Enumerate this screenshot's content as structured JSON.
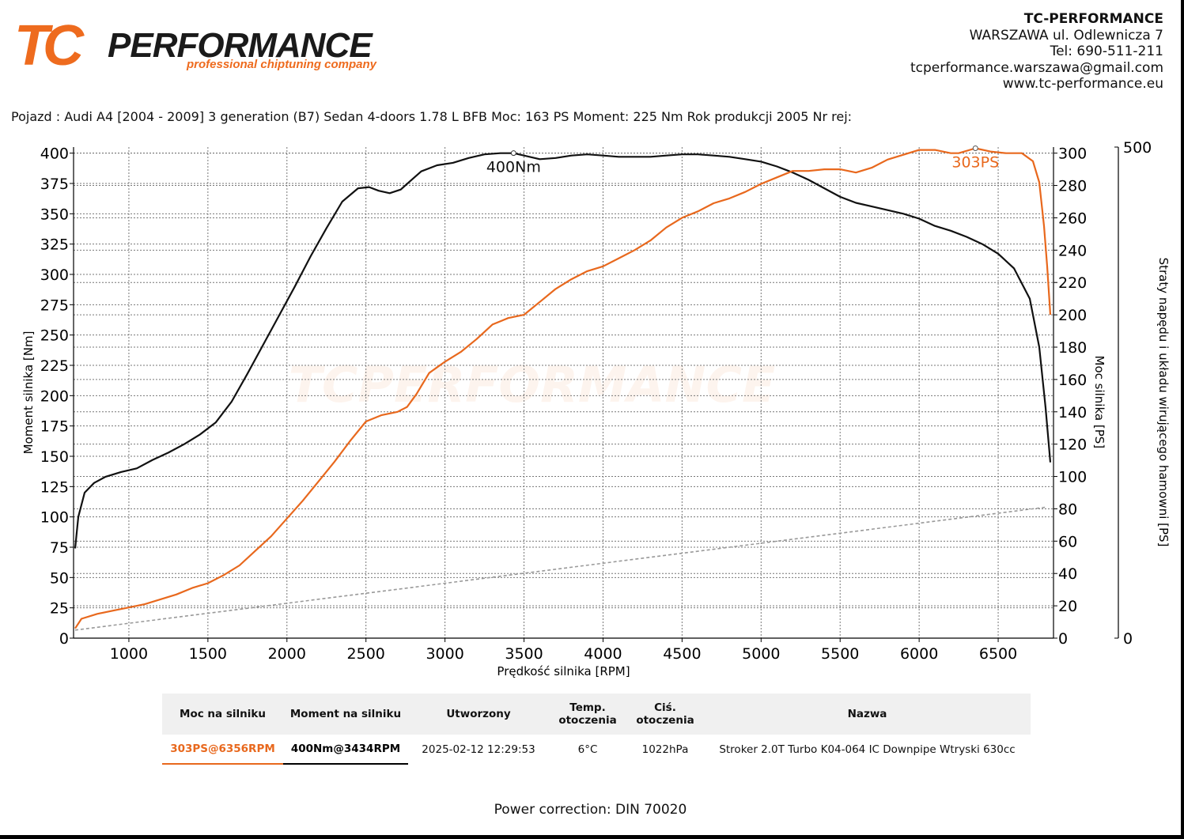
{
  "header": {
    "logo_text": "TCPERFORMANCE",
    "logo_tagline": "professional chiptuning company",
    "company_name": "TC-PERFORMANCE",
    "address": "WARSZAWA ul. Odlewnicza 7",
    "phone": "Tel: 690-511-211",
    "email": "tcperformance.warszawa@gmail.com",
    "website": "www.tc-performance.eu"
  },
  "vehicle_line": "Pojazd : Audi A4 [2004 - 2009] 3 generation (B7) Sedan 4-doors 1.78 L BFB Moc: 163 PS Moment: 225 Nm Rok produkcji 2005 Nr rej:",
  "colors": {
    "power": "#e8681d",
    "torque": "#111111",
    "losses": "#999999"
  },
  "chart_data": {
    "type": "line",
    "xlabel": "Prędkość silnika [RPM]",
    "ylabel_left": "Moment silnika [Nm]",
    "ylabel_right": "Moc silnika [PS]",
    "ylabel_right2": "Straty napędu i układu wirującego hamowni [PS]",
    "xlim": [
      650,
      6850
    ],
    "ylim_left": [
      0,
      405
    ],
    "ylim_right": [
      0,
      303.75
    ],
    "ylim_right2": [
      0,
      500
    ],
    "x_ticks": [
      1000,
      1500,
      2000,
      2500,
      3000,
      3500,
      4000,
      4500,
      5000,
      5500,
      6000,
      6500
    ],
    "y_ticks_left": [
      0,
      25,
      50,
      75,
      100,
      125,
      150,
      175,
      200,
      225,
      250,
      275,
      300,
      325,
      350,
      375,
      400
    ],
    "y_ticks_right": [
      0,
      20,
      40,
      60,
      80,
      100,
      120,
      140,
      160,
      180,
      200,
      220,
      240,
      260,
      280,
      300
    ],
    "y_ticks_right2": [
      0,
      500
    ],
    "grid": true,
    "series": [
      {
        "name": "Moment na silniku",
        "axis": "left",
        "x": [
          660,
          680,
          720,
          780,
          850,
          950,
          1050,
          1150,
          1250,
          1350,
          1450,
          1550,
          1650,
          1750,
          1850,
          1950,
          2050,
          2150,
          2250,
          2350,
          2450,
          2520,
          2580,
          2650,
          2720,
          2780,
          2850,
          2950,
          3050,
          3150,
          3250,
          3350,
          3434,
          3500,
          3600,
          3700,
          3800,
          3900,
          4000,
          4100,
          4200,
          4300,
          4400,
          4500,
          4600,
          4700,
          4800,
          4900,
          5000,
          5100,
          5200,
          5300,
          5400,
          5500,
          5600,
          5700,
          5800,
          5900,
          6000,
          6100,
          6200,
          6300,
          6400,
          6500,
          6600,
          6700,
          6760,
          6800,
          6830
        ],
        "values": [
          74,
          100,
          120,
          128,
          133,
          137,
          140,
          147,
          153,
          160,
          168,
          178,
          195,
          218,
          242,
          266,
          290,
          315,
          338,
          360,
          371,
          372,
          369,
          367,
          370,
          377,
          385,
          390,
          392,
          396,
          399,
          400,
          400,
          398,
          395,
          396,
          398,
          399,
          398,
          397,
          397,
          397,
          398,
          399,
          399,
          398,
          397,
          395,
          393,
          389,
          384,
          378,
          371,
          364,
          359,
          356,
          353,
          350,
          346,
          340,
          336,
          331,
          325,
          317,
          305,
          280,
          240,
          190,
          145
        ]
      },
      {
        "name": "Moc na silniku",
        "axis": "right",
        "x": [
          660,
          700,
          800,
          900,
          1000,
          1100,
          1200,
          1300,
          1400,
          1500,
          1600,
          1700,
          1800,
          1900,
          2000,
          2100,
          2200,
          2300,
          2400,
          2500,
          2600,
          2700,
          2760,
          2820,
          2900,
          3000,
          3100,
          3200,
          3300,
          3400,
          3500,
          3600,
          3700,
          3800,
          3900,
          4000,
          4100,
          4200,
          4300,
          4400,
          4500,
          4600,
          4700,
          4800,
          4900,
          5000,
          5100,
          5200,
          5300,
          5400,
          5500,
          5600,
          5700,
          5800,
          5900,
          6000,
          6100,
          6200,
          6250,
          6356,
          6450,
          6550,
          6650,
          6720,
          6760,
          6790,
          6810,
          6830
        ],
        "values": [
          6,
          12,
          15,
          17,
          19,
          21,
          24,
          27,
          31,
          34,
          39,
          45,
          54,
          63,
          74,
          85,
          97,
          109,
          122,
          134,
          138,
          140,
          143,
          151,
          164,
          171,
          177,
          185,
          194,
          198,
          200,
          208,
          216,
          222,
          227,
          230,
          235,
          240,
          246,
          254,
          260,
          264,
          269,
          272,
          276,
          281,
          285,
          289,
          289,
          290,
          290,
          288,
          291,
          296,
          299,
          302,
          302,
          300,
          300,
          303,
          301,
          300,
          300,
          295,
          282,
          255,
          230,
          200
        ]
      },
      {
        "name": "Straty napędu",
        "axis": "right",
        "x": [
          660,
          6800
        ],
        "values": [
          5,
          81
        ]
      }
    ],
    "annotations": [
      {
        "text": "400Nm",
        "series": "Moment na silniku",
        "x": 3434,
        "y": 400
      },
      {
        "text": "303PS",
        "series": "Moc na silniku",
        "x": 6356,
        "y": 303
      }
    ]
  },
  "results": {
    "headers": [
      "Moc na silniku",
      "Moment na silniku",
      "Utworzony",
      "Temp. otoczenia",
      "Ciś. otoczenia",
      "Nazwa"
    ],
    "row": {
      "power": "303PS@6356RPM",
      "torque": "400Nm@3434RPM",
      "created": "2025-02-12 12:29:53",
      "temp": "6°C",
      "pressure": "1022hPa",
      "name": "Stroker 2.0T Turbo K04-064 IC Downpipe Wtryski 630cc"
    }
  },
  "correction": "Power correction: DIN 70020"
}
